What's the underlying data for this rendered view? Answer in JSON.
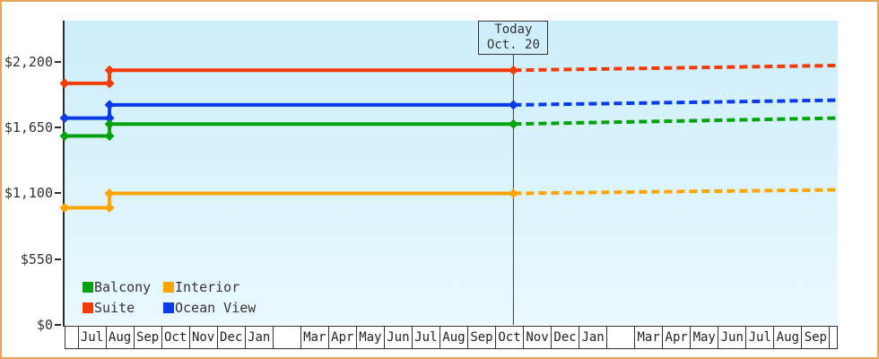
{
  "frame": {
    "border_color": "#eaa45c",
    "background_outside": "#ffffff"
  },
  "chart_data": {
    "type": "line",
    "title": "",
    "description": "Cruise cabin price history by category with projected (dashed) future prices",
    "y_axis": {
      "tick_labels": [
        "$2,200",
        "$1,650",
        "$1,100",
        "$550",
        "$0"
      ],
      "tick_values": [
        2200,
        1650,
        1100,
        550,
        0
      ],
      "ylim": [
        0,
        2545
      ],
      "grid": false
    },
    "x_axis": {
      "months": [
        "Jul",
        "Aug",
        "Sep",
        "Oct",
        "Nov",
        "Dec",
        "Jan",
        "",
        "Mar",
        "Apr",
        "May",
        "Jun",
        "Jul",
        "Aug",
        "Sep",
        "Oct",
        "Nov",
        "Dec",
        "Jan",
        "",
        "Mar",
        "Apr",
        "May",
        "Jun",
        "Jul",
        "Aug",
        "Sep"
      ]
    },
    "today": {
      "u": 15.63,
      "box_lines": [
        "Today",
        "Oct. 20"
      ],
      "line_color": "#3c3c3c"
    },
    "series": [
      {
        "name": "Suite",
        "color": "#f33b08",
        "solid": [
          [
            -0.45,
            2020
          ],
          [
            1.16,
            2020
          ],
          [
            1.16,
            2130
          ],
          [
            15.63,
            2130
          ]
        ],
        "dashed": [
          [
            15.63,
            2130
          ],
          [
            27.25,
            2170
          ]
        ]
      },
      {
        "name": "Ocean View",
        "color": "#0a3be8",
        "solid": [
          [
            -0.45,
            1730
          ],
          [
            1.16,
            1730
          ],
          [
            1.16,
            1840
          ],
          [
            15.63,
            1840
          ]
        ],
        "dashed": [
          [
            15.63,
            1840
          ],
          [
            27.25,
            1880
          ]
        ]
      },
      {
        "name": "Balcony",
        "color": "#04a10e",
        "solid": [
          [
            -0.45,
            1580
          ],
          [
            1.16,
            1580
          ],
          [
            1.16,
            1680
          ],
          [
            15.63,
            1680
          ]
        ],
        "dashed": [
          [
            15.63,
            1680
          ],
          [
            27.25,
            1730
          ]
        ]
      },
      {
        "name": "Interior",
        "color": "#ffa405",
        "solid": [
          [
            -0.45,
            980
          ],
          [
            1.16,
            980
          ],
          [
            1.16,
            1100
          ],
          [
            15.63,
            1100
          ]
        ],
        "dashed": [
          [
            15.63,
            1100
          ],
          [
            27.25,
            1130
          ]
        ]
      }
    ],
    "legend": {
      "position": "bottom-left",
      "items": [
        {
          "label": "Balcony",
          "color": "#04a10e"
        },
        {
          "label": "Suite",
          "color": "#f33b08"
        },
        {
          "label": "Interior",
          "color": "#ffa405"
        },
        {
          "label": "Ocean View",
          "color": "#0a3be8"
        }
      ]
    },
    "layout_hints": {
      "plot_background": "light blue vertical gradient",
      "axis_color": "#2e2e2e",
      "line_width": 4,
      "marker": "diamond",
      "dashed_projection_after_today": true
    }
  }
}
